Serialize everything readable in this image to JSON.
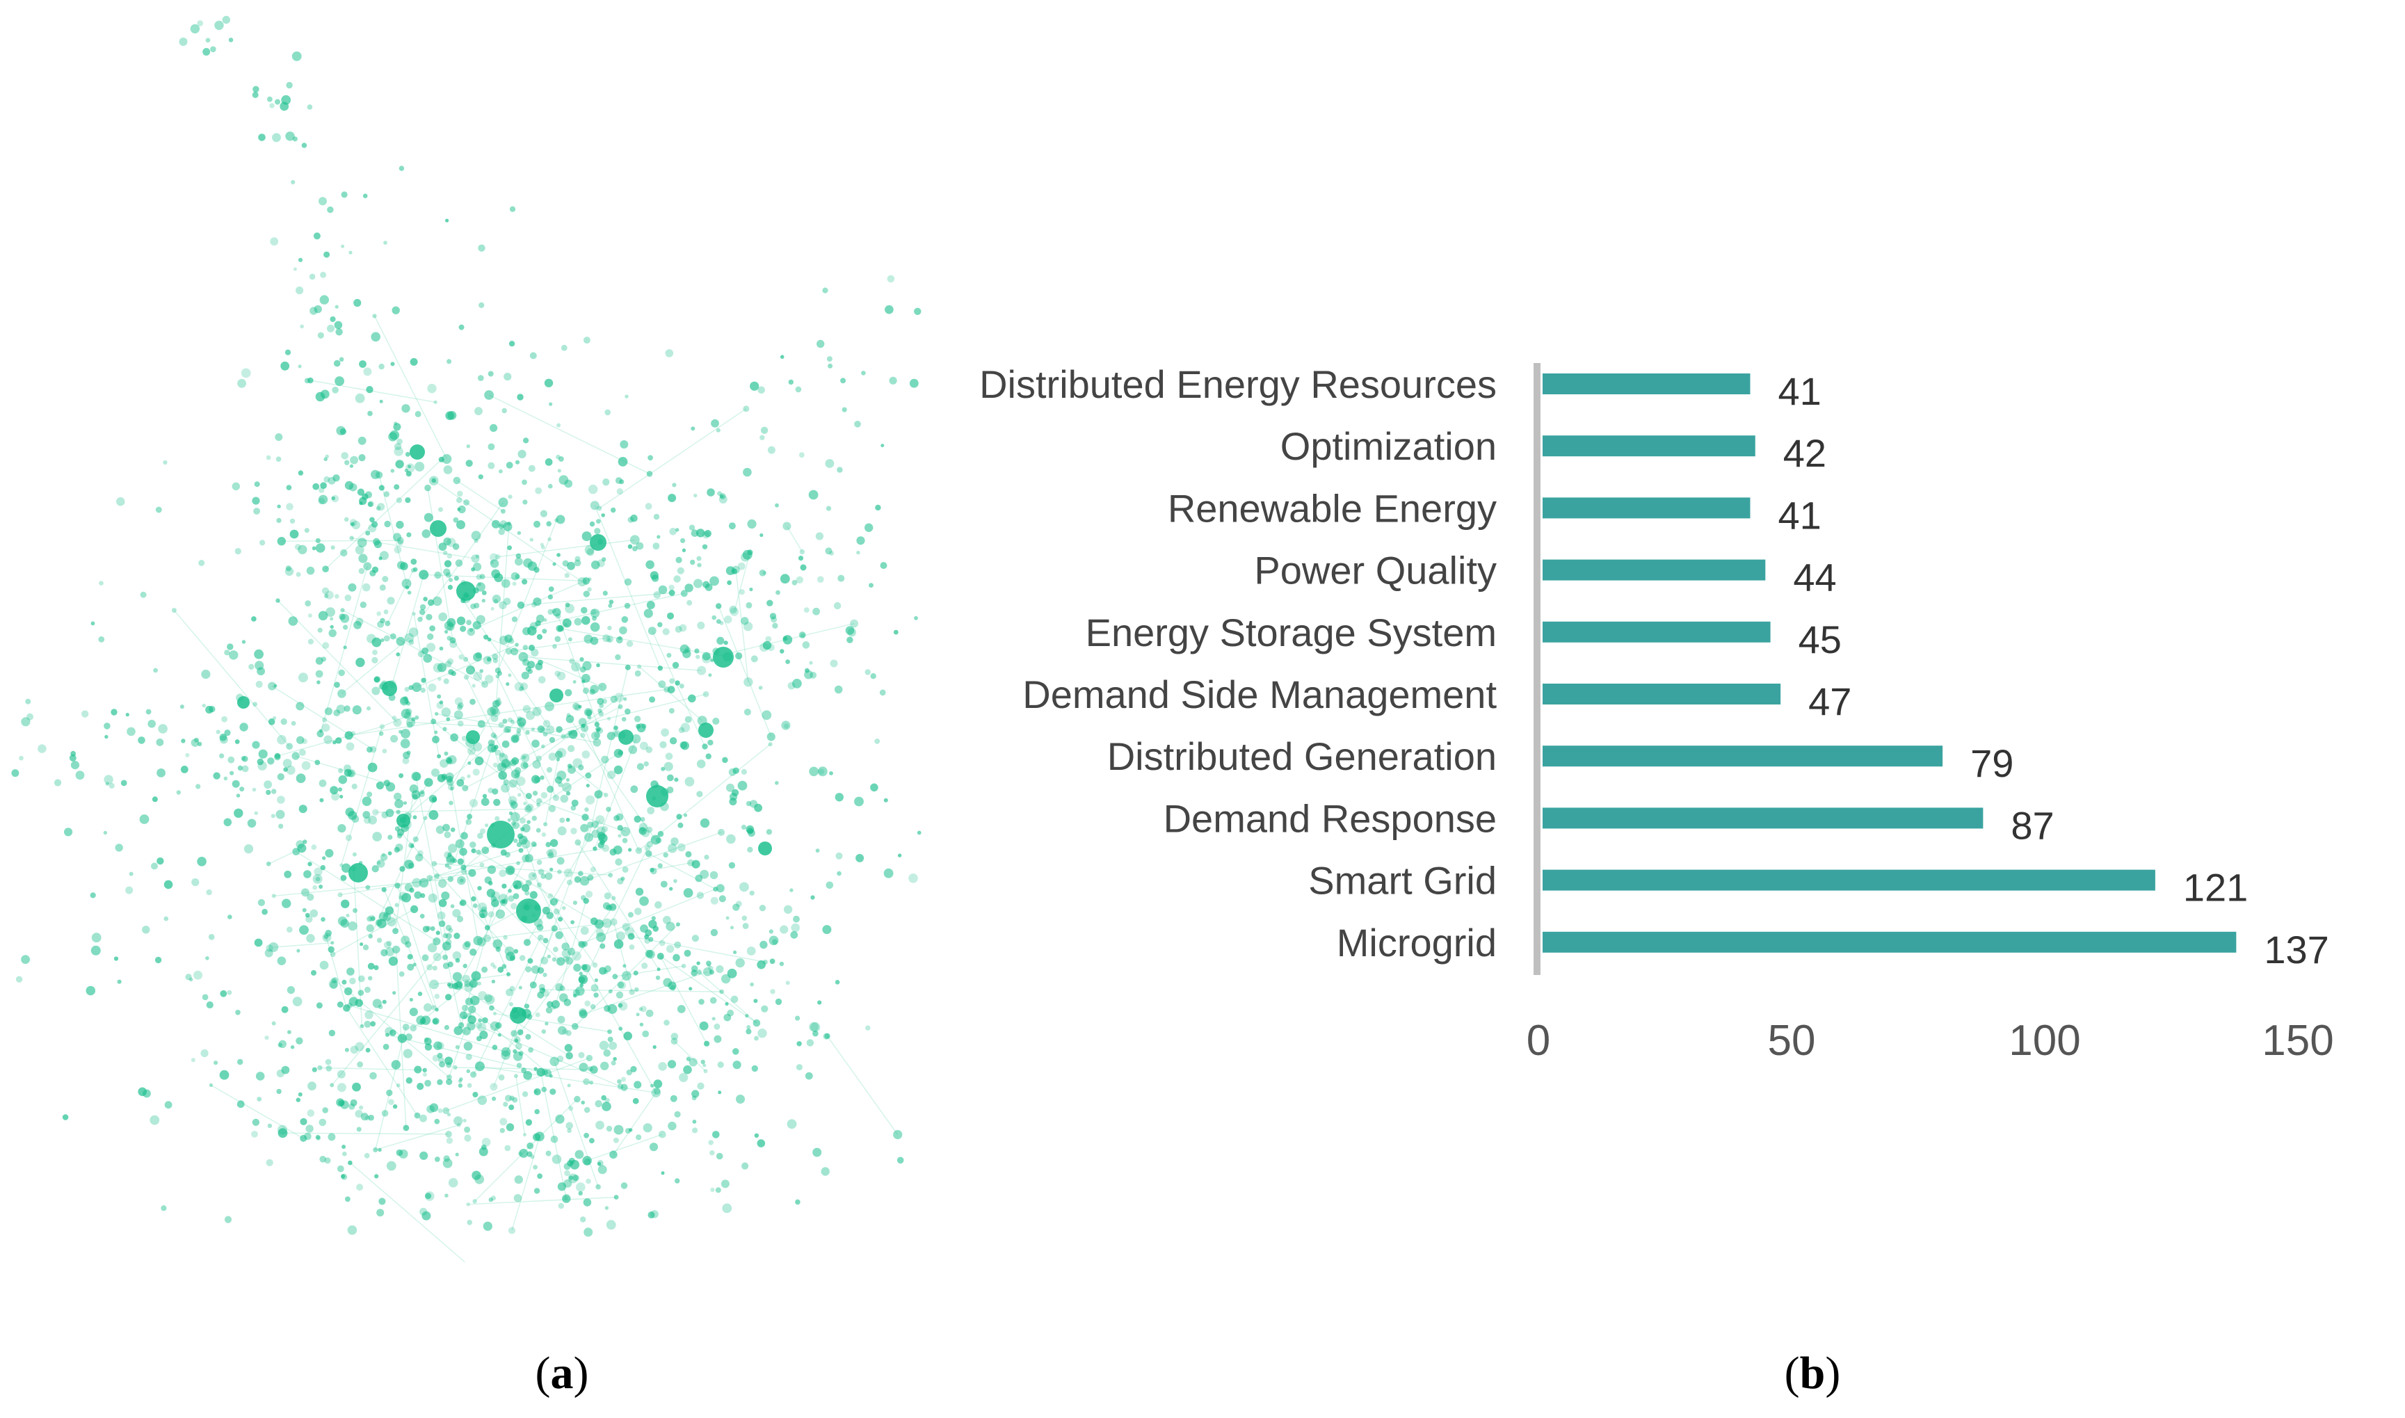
{
  "panels": {
    "a": {
      "open": "(",
      "letter": "a",
      "close": ")"
    },
    "b": {
      "open": "(",
      "letter": "b",
      "close": ")"
    }
  },
  "network": {
    "node_color": "#1dbf8e",
    "edge_color": "#7fdcbf"
  },
  "chart_data": {
    "type": "bar",
    "orientation": "horizontal",
    "categories": [
      "Distributed Energy Resources",
      "Optimization",
      "Renewable Energy",
      "Power Quality",
      "Energy Storage System",
      "Demand Side Management",
      "Distributed Generation",
      "Demand Response",
      "Smart Grid",
      "Microgrid"
    ],
    "values": [
      41,
      42,
      41,
      44,
      45,
      47,
      79,
      87,
      121,
      137
    ],
    "xlim": [
      0,
      150
    ],
    "xticks": [
      0,
      50,
      100,
      150
    ],
    "bar_color": "#3aa3a0",
    "axis_color": "#bfbfbf",
    "grid": false,
    "legend": "none",
    "title": "",
    "xlabel": "",
    "ylabel": ""
  }
}
